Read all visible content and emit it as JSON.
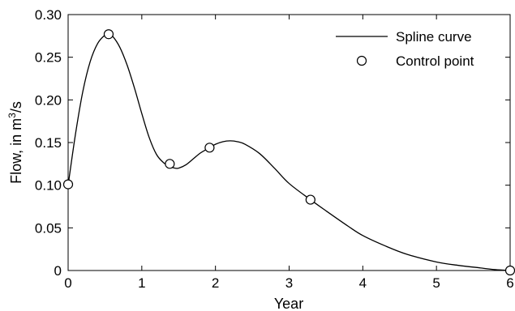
{
  "chart_data": {
    "type": "line",
    "xlabel": "Year",
    "ylabel_prefix": "Flow, in m",
    "ylabel_sup": "3",
    "ylabel_suffix": "/s",
    "xlim": [
      0,
      6
    ],
    "ylim": [
      0,
      0.3
    ],
    "x_ticks": [
      0,
      1,
      2,
      3,
      4,
      5,
      6
    ],
    "x_tick_labels": [
      "0",
      "1",
      "2",
      "3",
      "4",
      "5",
      "6"
    ],
    "y_ticks": [
      0,
      0.05,
      0.1,
      0.15,
      0.2,
      0.25,
      0.3
    ],
    "y_tick_labels": [
      "0",
      "0.05",
      "0.10",
      "0.15",
      "0.20",
      "0.25",
      "0.30"
    ],
    "grid": false,
    "legend_position": "top-right",
    "series": [
      {
        "name": "Spline curve",
        "style": "line",
        "x": [
          0,
          0.1,
          0.2,
          0.3,
          0.4,
          0.5,
          0.55,
          0.6,
          0.7,
          0.8,
          0.9,
          1.0,
          1.1,
          1.2,
          1.3,
          1.38,
          1.45,
          1.5,
          1.6,
          1.7,
          1.8,
          1.92,
          2.0,
          2.1,
          2.2,
          2.3,
          2.4,
          2.6,
          2.8,
          3.0,
          3.29,
          3.5,
          3.8,
          4.0,
          4.3,
          4.6,
          5.0,
          5.3,
          5.6,
          5.8,
          6.0
        ],
        "y": [
          0.1,
          0.16,
          0.21,
          0.245,
          0.266,
          0.276,
          0.277,
          0.275,
          0.262,
          0.241,
          0.214,
          0.184,
          0.156,
          0.136,
          0.126,
          0.122,
          0.12,
          0.12,
          0.124,
          0.131,
          0.138,
          0.144,
          0.148,
          0.151,
          0.152,
          0.151,
          0.148,
          0.137,
          0.12,
          0.102,
          0.083,
          0.07,
          0.052,
          0.041,
          0.029,
          0.019,
          0.01,
          0.006,
          0.003,
          0.001,
          0.0
        ],
        "color": "#000000"
      },
      {
        "name": "Control point",
        "style": "markers",
        "x": [
          0,
          0.55,
          1.38,
          1.92,
          3.29,
          6.0
        ],
        "y": [
          0.101,
          0.277,
          0.125,
          0.144,
          0.083,
          0.0
        ],
        "color": "#000000"
      }
    ]
  }
}
